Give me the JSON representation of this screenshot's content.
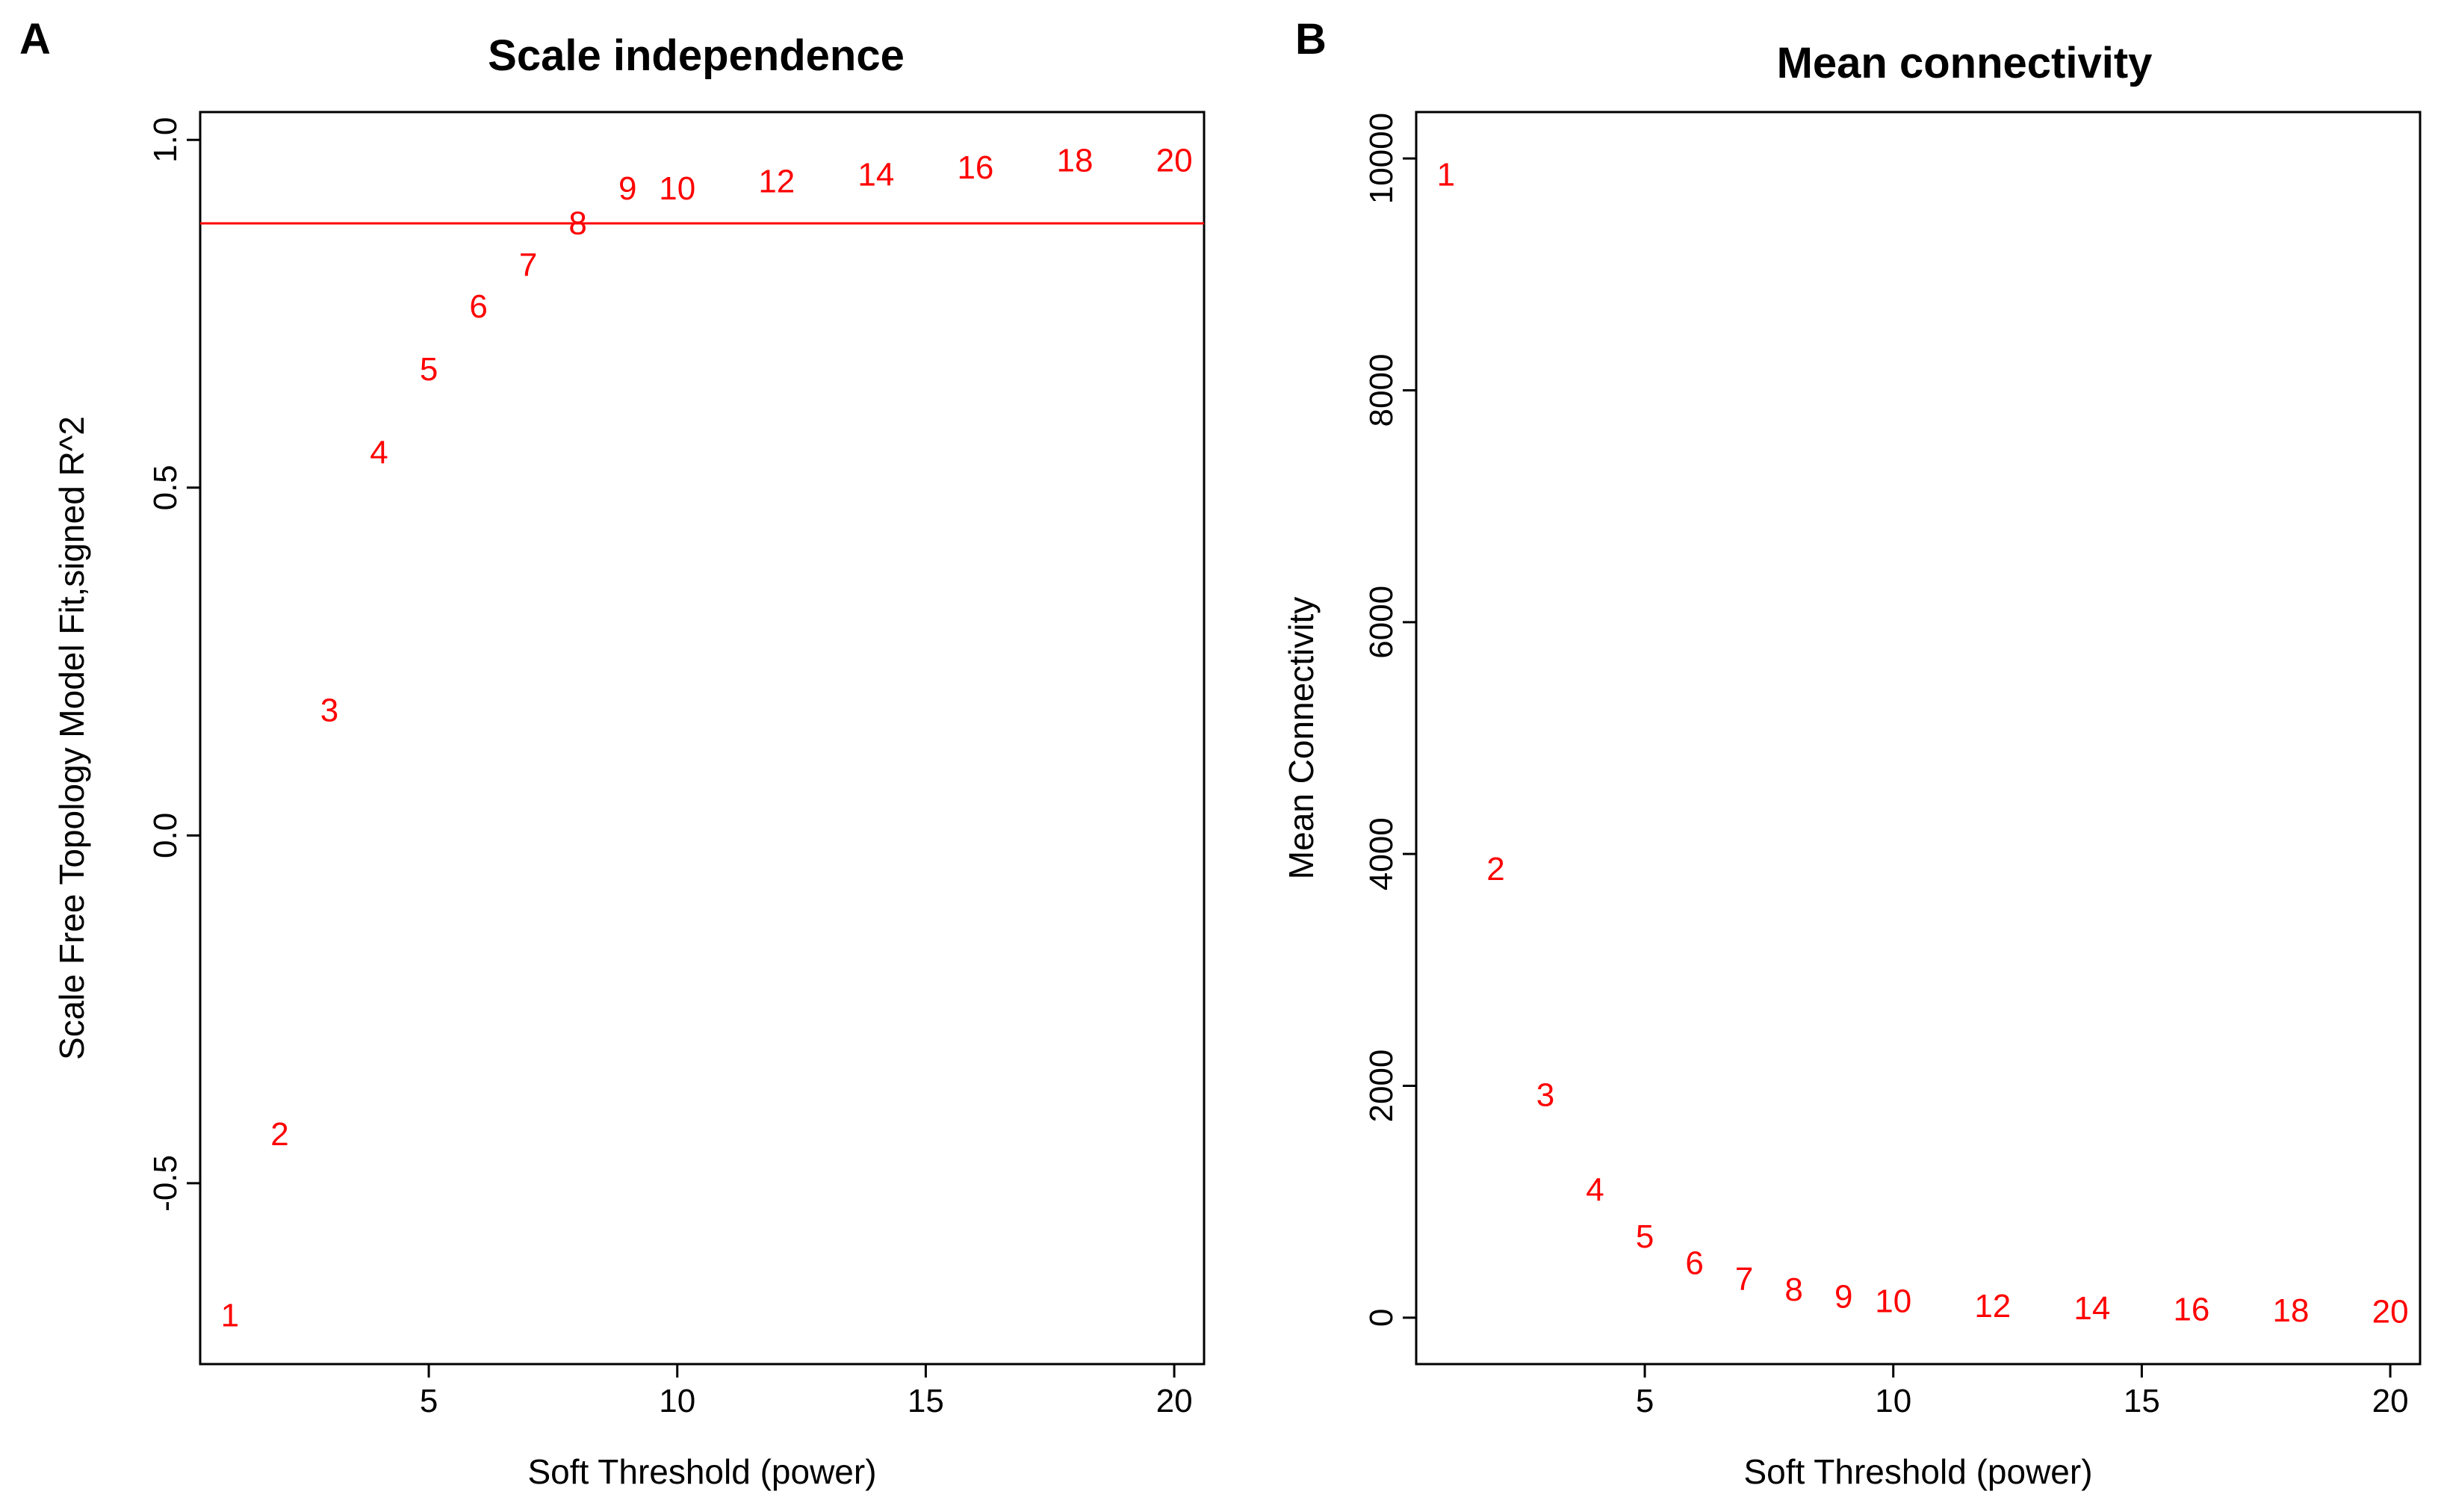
{
  "figure": {
    "panels": [
      "A",
      "B"
    ]
  },
  "chart_data": [
    {
      "type": "scatter",
      "marker": "text-label",
      "title": "Scale independence",
      "xlabel": "Soft Threshold (power)",
      "ylabel": "Scale Free Topology Model Fit,signed R^2",
      "xlim": [
        0.4,
        20.6
      ],
      "ylim": [
        -0.76,
        1.04
      ],
      "xticks": [
        5,
        10,
        15,
        20
      ],
      "yticks": [
        -0.5,
        0.0,
        0.5,
        1.0
      ],
      "ytick_labels": [
        "-0.5",
        "0.0",
        "0.5",
        "1.0"
      ],
      "grid": false,
      "point_color": "#ff0000",
      "hline": {
        "y": 0.88,
        "color": "#ff0000"
      },
      "points": [
        {
          "x": 1,
          "y": -0.69,
          "label": "1"
        },
        {
          "x": 2,
          "y": -0.43,
          "label": "2"
        },
        {
          "x": 3,
          "y": 0.18,
          "label": "3"
        },
        {
          "x": 4,
          "y": 0.55,
          "label": "4"
        },
        {
          "x": 5,
          "y": 0.67,
          "label": "5"
        },
        {
          "x": 6,
          "y": 0.76,
          "label": "6"
        },
        {
          "x": 7,
          "y": 0.82,
          "label": "7"
        },
        {
          "x": 8,
          "y": 0.88,
          "label": "8"
        },
        {
          "x": 9,
          "y": 0.93,
          "label": "9"
        },
        {
          "x": 10,
          "y": 0.93,
          "label": "10"
        },
        {
          "x": 12,
          "y": 0.94,
          "label": "12"
        },
        {
          "x": 14,
          "y": 0.95,
          "label": "14"
        },
        {
          "x": 16,
          "y": 0.96,
          "label": "16"
        },
        {
          "x": 18,
          "y": 0.97,
          "label": "18"
        },
        {
          "x": 20,
          "y": 0.97,
          "label": "20"
        }
      ]
    },
    {
      "type": "scatter",
      "marker": "text-label",
      "title": "Mean connectivity",
      "xlabel": "Soft Threshold (power)",
      "ylabel": "Mean Connectivity",
      "xlim": [
        0.4,
        20.6
      ],
      "ylim": [
        -400,
        10400
      ],
      "xticks": [
        5,
        10,
        15,
        20
      ],
      "yticks": [
        0,
        2000,
        4000,
        6000,
        8000,
        10000
      ],
      "ytick_labels": [
        "0",
        "2000",
        "4000",
        "6000",
        "8000",
        "10000"
      ],
      "grid": false,
      "point_color": "#ff0000",
      "points": [
        {
          "x": 1,
          "y": 9860,
          "label": "1"
        },
        {
          "x": 2,
          "y": 3870,
          "label": "2"
        },
        {
          "x": 3,
          "y": 1920,
          "label": "3"
        },
        {
          "x": 4,
          "y": 1100,
          "label": "4"
        },
        {
          "x": 5,
          "y": 700,
          "label": "5"
        },
        {
          "x": 6,
          "y": 470,
          "label": "6"
        },
        {
          "x": 7,
          "y": 330,
          "label": "7"
        },
        {
          "x": 8,
          "y": 240,
          "label": "8"
        },
        {
          "x": 9,
          "y": 180,
          "label": "9"
        },
        {
          "x": 10,
          "y": 140,
          "label": "10"
        },
        {
          "x": 12,
          "y": 100,
          "label": "12"
        },
        {
          "x": 14,
          "y": 80,
          "label": "14"
        },
        {
          "x": 16,
          "y": 70,
          "label": "16"
        },
        {
          "x": 18,
          "y": 60,
          "label": "18"
        },
        {
          "x": 20,
          "y": 50,
          "label": "20"
        }
      ]
    }
  ]
}
